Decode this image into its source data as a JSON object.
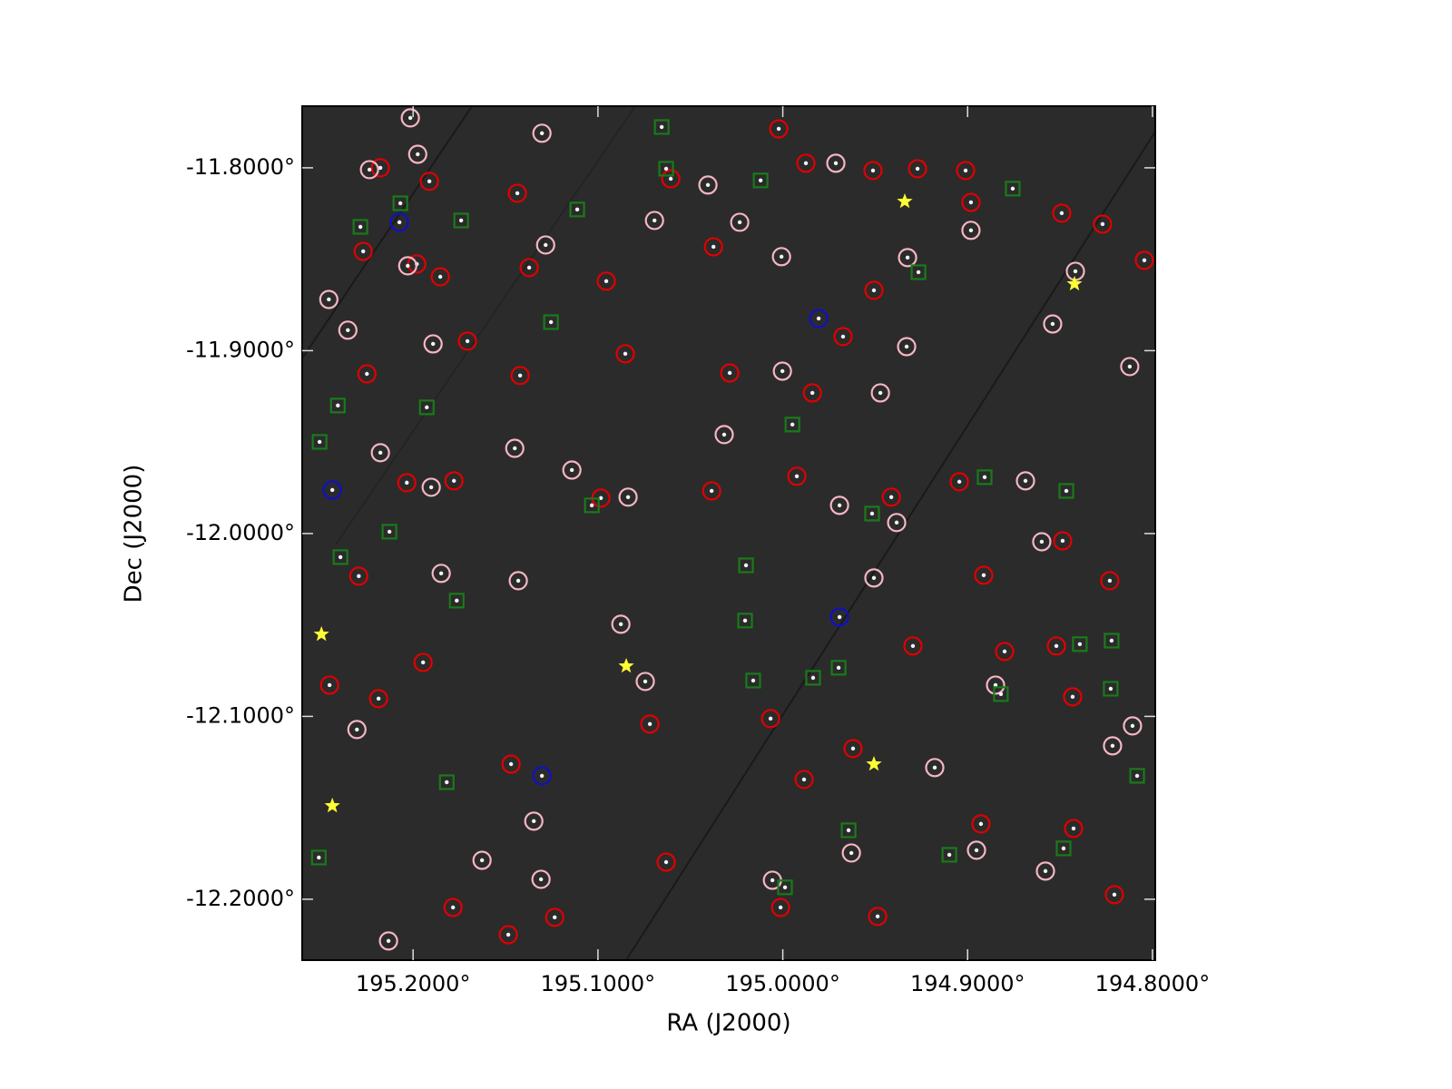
{
  "chart_data": {
    "type": "scatter",
    "x_label": "RA (J2000)",
    "y_label": "Dec (J2000)",
    "xlim": [
      195.26,
      194.7985
    ],
    "ylim": [
      -12.2333,
      -11.7663
    ],
    "xticks": [
      {
        "value": 195.2,
        "label": "195.2000°"
      },
      {
        "value": 195.1,
        "label": "195.1000°"
      },
      {
        "value": 195.0,
        "label": "195.0000°"
      },
      {
        "value": 194.9,
        "label": "194.9000°"
      },
      {
        "value": 194.8,
        "label": "194.8000°"
      }
    ],
    "yticks": [
      {
        "value": -11.8,
        "label": "-11.8000°"
      },
      {
        "value": -11.9,
        "label": "-11.9000°"
      },
      {
        "value": -12.0,
        "label": "-12.0000°"
      },
      {
        "value": -12.1,
        "label": "-12.1000°"
      },
      {
        "value": -12.2,
        "label": "-12.2000°"
      }
    ],
    "background_color": "#2b2b2b",
    "series": [
      {
        "color": "#e00000",
        "marker": "circle",
        "x": [
          195.2177,
          195.1912,
          195.198,
          195.1853,
          195.227,
          195.1436,
          195.1372,
          195.0955,
          195.0606,
          195.0375,
          195.0022,
          194.9875,
          194.9512,
          194.9271,
          194.9011,
          194.8982,
          194.8491,
          194.827,
          194.8044,
          194.9507,
          194.9674,
          194.984,
          195.0287,
          195.0852,
          195.1421,
          195.1706,
          195.225,
          195.2034,
          195.1779,
          195.0984,
          195.0385,
          194.9924,
          194.9413,
          194.9045,
          194.8486,
          194.8913,
          194.8231,
          194.88,
          194.852,
          194.8432,
          194.9296,
          194.962,
          195.0066,
          195.0719,
          195.147,
          195.1946,
          195.2187,
          195.2452,
          195.2294,
          195.1485,
          195.1784,
          195.1234,
          195.0631,
          195.0012,
          194.9487,
          194.8206,
          194.8427,
          194.8928,
          194.9885
        ],
        "y": [
          -11.8,
          -11.8074,
          -11.8526,
          -11.8596,
          -11.8457,
          -11.8139,
          -11.8546,
          -11.862,
          -11.806,
          -11.8432,
          -11.7787,
          -11.7975,
          -11.8015,
          -11.8005,
          -11.8015,
          -11.8189,
          -11.8248,
          -11.8308,
          -11.8506,
          -11.867,
          -11.8923,
          -11.9231,
          -11.9122,
          -11.9017,
          -11.9136,
          -11.8948,
          -11.9127,
          -11.9722,
          -11.9712,
          -11.9806,
          -11.9767,
          -11.9687,
          -11.9801,
          -11.9717,
          -12.004,
          -12.0228,
          -12.0258,
          -12.0645,
          -12.0615,
          -12.0893,
          -12.0615,
          -12.1176,
          -12.1012,
          -12.1042,
          -12.1261,
          -12.0705,
          -12.0903,
          -12.0829,
          -12.0233,
          -12.2194,
          -12.2045,
          -12.2099,
          -12.1797,
          -12.2045,
          -12.2094,
          -12.1975,
          -12.1613,
          -12.1588,
          -12.1345
        ]
      },
      {
        "color": "#f4b6c2",
        "marker": "circle",
        "x": [
          195.2015,
          195.1975,
          195.2236,
          195.2029,
          195.2456,
          195.2353,
          195.1892,
          195.1303,
          195.1283,
          195.0694,
          195.0405,
          195.0233,
          195.0007,
          194.9713,
          194.9325,
          194.8982,
          194.8417,
          194.854,
          194.8123,
          194.933,
          195.0002,
          194.9472,
          195.0317,
          195.145,
          195.2177,
          195.1902,
          195.1141,
          195.0837,
          194.9693,
          194.9384,
          194.9507,
          194.8687,
          194.8599,
          194.8216,
          194.8579,
          194.8849,
          194.8108,
          194.9178,
          194.9629,
          195.0056,
          195.1347,
          195.1308,
          195.1627,
          195.2133,
          195.2304,
          195.1848,
          195.1431,
          195.0876,
          195.0744,
          194.8952
        ],
        "y": [
          -11.7727,
          -11.7926,
          -11.801,
          -11.8536,
          -11.872,
          -11.8888,
          -11.8963,
          -11.7811,
          -11.8422,
          -11.8288,
          -11.8094,
          -11.8298,
          -11.8486,
          -11.7975,
          -11.8491,
          -11.8342,
          -11.8566,
          -11.8854,
          -11.9087,
          -11.8978,
          -11.9112,
          -11.9231,
          -11.9459,
          -11.9534,
          -11.9558,
          -11.9747,
          -11.9653,
          -11.9801,
          -11.9846,
          -11.994,
          -12.0243,
          -11.9712,
          -12.0045,
          -12.1161,
          -12.1846,
          -12.0829,
          -12.1052,
          -12.128,
          -12.1747,
          -12.1896,
          -12.1573,
          -12.1891,
          -12.1787,
          -12.2228,
          -12.1072,
          -12.0218,
          -12.0258,
          -12.0496,
          -12.0809,
          -12.1732
        ]
      },
      {
        "color": "#1a7a1a",
        "marker": "square",
        "x": [
          195.0655,
          195.0631,
          195.012,
          195.2069,
          195.2285,
          195.174,
          195.1112,
          194.8756,
          194.9266,
          195.1254,
          195.2407,
          195.1926,
          194.9948,
          195.2506,
          194.8908,
          194.8466,
          195.1033,
          194.9517,
          195.2128,
          195.2393,
          195.0199,
          195.1764,
          195.0204,
          194.8393,
          194.8221,
          195.016,
          194.9836,
          194.9698,
          194.882,
          194.8226,
          195.1818,
          194.8083,
          194.9644,
          195.251,
          194.9099,
          194.8481,
          194.9988
        ],
        "y": [
          -11.7777,
          -11.8005,
          -11.8069,
          -11.8194,
          -11.8323,
          -11.8288,
          -11.8228,
          -11.8114,
          -11.8571,
          -11.8844,
          -11.93,
          -11.931,
          -11.9404,
          -11.9499,
          -11.9692,
          -11.9767,
          -11.9846,
          -11.9891,
          -11.999,
          -12.0129,
          -12.0174,
          -12.0367,
          -12.0476,
          -12.0605,
          -12.0586,
          -12.0804,
          -12.0789,
          -12.0734,
          -12.0878,
          -12.0849,
          -12.136,
          -12.1325,
          -12.1623,
          -12.1772,
          -12.1757,
          -12.1722,
          -12.1935
        ]
      },
      {
        "color": "#1010c8",
        "marker": "circle",
        "x": [
          195.2074,
          194.9806,
          195.2437,
          194.9693,
          195.1303
        ],
        "y": [
          -11.8298,
          -11.8824,
          -11.9762,
          -12.0457,
          -12.1325
        ]
      },
      {
        "color": "#ffff33",
        "marker": "star",
        "x": [
          194.934,
          194.8422,
          195.2496,
          195.0847,
          194.9507,
          195.2437
        ],
        "y": [
          -11.8184,
          -11.8635,
          -12.0551,
          -12.0725,
          -12.1261,
          -12.1489
        ]
      }
    ]
  }
}
